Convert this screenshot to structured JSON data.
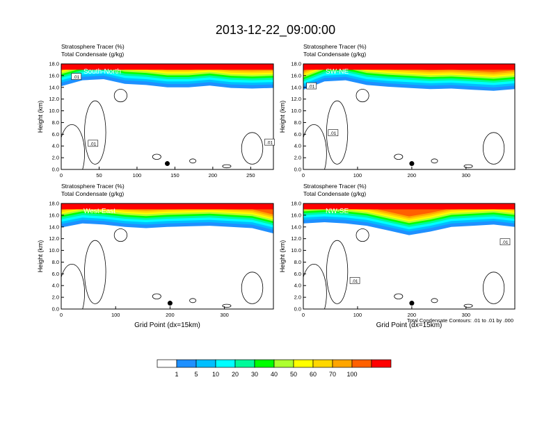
{
  "figure": {
    "title": "2013-12-22_09:00:00",
    "footnote": "Total Condensate Contours: .01 to .01 by .000"
  },
  "colorbar": {
    "labels": [
      "1",
      "5",
      "10",
      "20",
      "30",
      "40",
      "50",
      "60",
      "70",
      "100"
    ],
    "colors": [
      "#ffffff",
      "#1e90ff",
      "#00bfff",
      "#00ffff",
      "#00fa9a",
      "#00ff00",
      "#adff2f",
      "#ffff00",
      "#ffd700",
      "#ffa500",
      "#ff6000",
      "#ff0000"
    ]
  },
  "chart_data": [
    {
      "type": "heatmap",
      "panel_label": "South-North",
      "left_title_1": "Stratosphere Tracer   (%)",
      "left_title_2": "Total Condensate   (g/kg)",
      "ylabel": "Height (km)",
      "xlabel": "",
      "xlim": [
        0,
        280
      ],
      "xticks": [
        0,
        50,
        100,
        150,
        200,
        250
      ],
      "ylim": [
        0,
        18
      ],
      "yticks": [
        "0.0",
        "2.0",
        "4.0",
        "6.0",
        "8.0",
        "10.0",
        "12.0",
        "14.0",
        "16.0",
        "18.0"
      ],
      "tropopause_km": [
        14.8,
        15.8,
        16.0,
        15.2,
        15.0,
        14.6,
        14.6,
        14.9,
        14.5,
        14.4,
        14.5
      ],
      "marker": {
        "x": 140,
        "y": 1.0
      },
      "contour_labels": [
        {
          "text": ".01",
          "x": 20,
          "y": 15.8
        },
        {
          "text": ".01",
          "x": 42,
          "y": 4.4
        },
        {
          "text": ".01",
          "x": 275,
          "y": 4.6
        }
      ]
    },
    {
      "type": "heatmap",
      "panel_label": "SW-NE",
      "left_title_1": "Stratosphere Tracer   (%)",
      "left_title_2": "Total Condensate   (g/kg)",
      "ylabel": "Height (km)",
      "xlabel": "",
      "xlim": [
        0,
        390
      ],
      "xticks": [
        0,
        100,
        200,
        300
      ],
      "ylim": [
        0,
        18
      ],
      "yticks": [
        "0.0",
        "2.0",
        "4.0",
        "6.0",
        "8.0",
        "10.0",
        "12.0",
        "14.0",
        "16.0",
        "18.0"
      ],
      "tropopause_km": [
        14.2,
        15.6,
        15.8,
        15.0,
        14.7,
        14.5,
        14.3,
        14.4,
        14.2,
        14.0,
        14.3
      ],
      "marker": {
        "x": 200,
        "y": 1.0
      },
      "contour_labels": [
        {
          "text": ".01",
          "x": 15,
          "y": 14.2
        },
        {
          "text": ".01",
          "x": 55,
          "y": 6.2
        }
      ]
    },
    {
      "type": "heatmap",
      "panel_label": "West-East",
      "left_title_1": "Stratosphere Tracer   (%)",
      "left_title_2": "Total Condensate   (g/kg)",
      "ylabel": "Height (km)",
      "xlabel": "Grid Point (dx=15km)",
      "xlim": [
        0,
        390
      ],
      "xticks": [
        0,
        100,
        200,
        300
      ],
      "ylim": [
        0,
        18
      ],
      "yticks": [
        "0.0",
        "2.0",
        "4.0",
        "6.0",
        "8.0",
        "10.0",
        "12.0",
        "14.0",
        "16.0",
        "18.0"
      ],
      "tropopause_km": [
        14.5,
        15.2,
        15.0,
        14.6,
        14.4,
        14.6,
        14.7,
        14.8,
        14.6,
        14.4,
        13.5
      ],
      "marker": {
        "x": 200,
        "y": 1.0
      },
      "contour_labels": []
    },
    {
      "type": "heatmap",
      "panel_label": "NW-SE",
      "left_title_1": "Stratosphere Tracer   (%)",
      "left_title_2": "Total Condensate   (g/kg)",
      "ylabel": "Height (km)",
      "xlabel": "Grid Point (dx=15km)",
      "xlim": [
        0,
        390
      ],
      "xticks": [
        0,
        100,
        200,
        300
      ],
      "ylim": [
        0,
        18
      ],
      "yticks": [
        "0.0",
        "2.0",
        "4.0",
        "6.0",
        "8.0",
        "10.0",
        "12.0",
        "14.0",
        "16.0",
        "18.0"
      ],
      "tropopause_km": [
        15.2,
        15.4,
        15.2,
        14.8,
        14.0,
        13.2,
        13.8,
        14.6,
        14.8,
        15.0,
        14.6
      ],
      "marker": {
        "x": 200,
        "y": 1.0
      },
      "contour_labels": [
        {
          "text": ".01",
          "x": 95,
          "y": 4.8
        },
        {
          "text": ".01",
          "x": 372,
          "y": 11.4
        }
      ]
    }
  ]
}
